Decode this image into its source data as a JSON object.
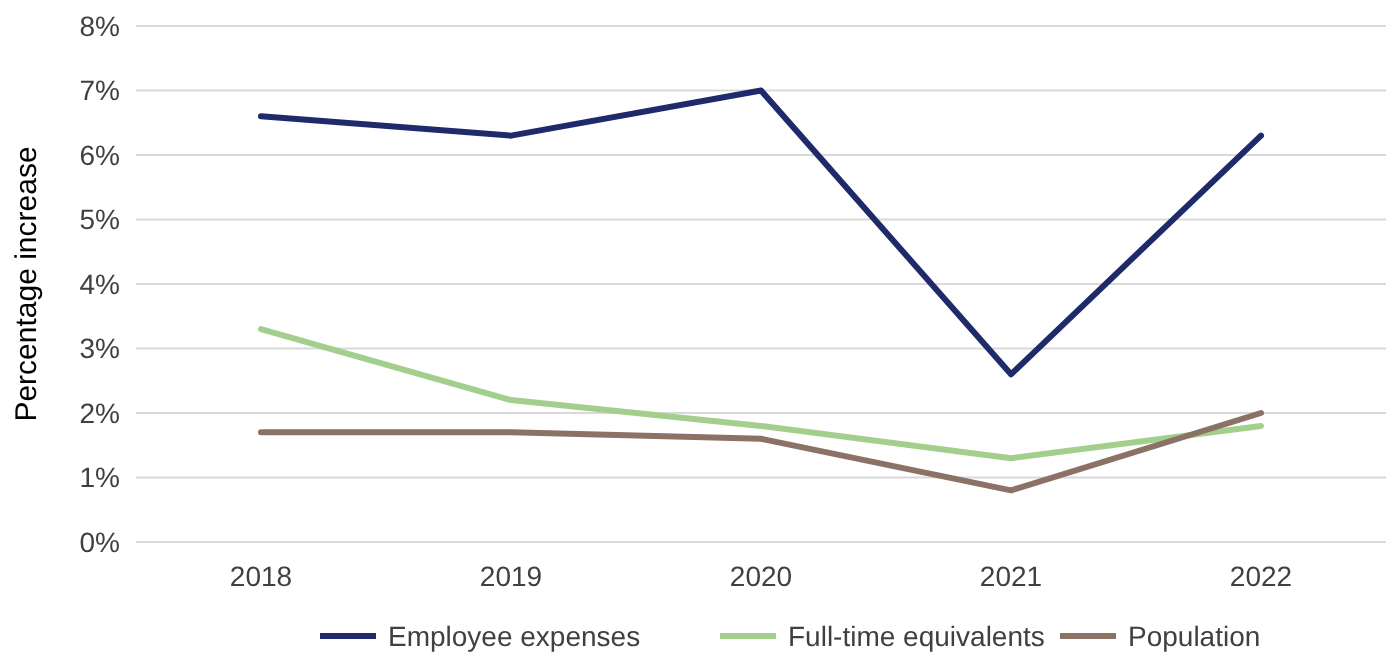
{
  "chart_data": {
    "type": "line",
    "ylabel": "Percentage increase",
    "categories": [
      "2018",
      "2019",
      "2020",
      "2021",
      "2022"
    ],
    "series": [
      {
        "name": "Employee expenses",
        "color": "#1f2a6b",
        "values": [
          6.6,
          6.3,
          7.0,
          2.6,
          6.3
        ]
      },
      {
        "name": "Full-time equivalents",
        "color": "#a3cf8c",
        "values": [
          3.3,
          2.2,
          1.8,
          1.3,
          1.8
        ]
      },
      {
        "name": "Population",
        "color": "#8b7266",
        "values": [
          1.7,
          1.7,
          1.6,
          0.8,
          2.0
        ]
      }
    ],
    "ylim": [
      0,
      8
    ],
    "yticks": [
      {
        "value": 0,
        "label": "0%"
      },
      {
        "value": 1,
        "label": "1%"
      },
      {
        "value": 2,
        "label": "2%"
      },
      {
        "value": 3,
        "label": "3%"
      },
      {
        "value": 4,
        "label": "4%"
      },
      {
        "value": 5,
        "label": "5%"
      },
      {
        "value": 6,
        "label": "6%"
      },
      {
        "value": 7,
        "label": "7%"
      },
      {
        "value": 8,
        "label": "8%"
      }
    ],
    "grid": "y",
    "legend": "bottom",
    "marker": "none",
    "line_style": "solid"
  }
}
